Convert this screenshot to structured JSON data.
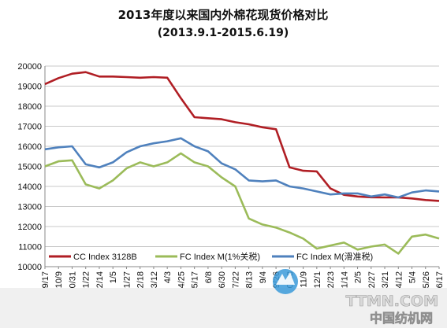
{
  "chart_data": {
    "type": "line",
    "title": "2013年度以来国内外棉花现货价格对比",
    "subtitle": "(2013.9.1-2015.6.19)",
    "xlabel": "",
    "ylabel": "",
    "ylim": [
      10000,
      20000
    ],
    "yticks": [
      10000,
      11000,
      12000,
      13000,
      14000,
      15000,
      16000,
      17000,
      18000,
      19000,
      20000
    ],
    "grid": "horizontal",
    "legend_position": "bottom",
    "x": [
      "9/17",
      "10/9",
      "10/31",
      "11/22",
      "12/14",
      "1/5",
      "1/27",
      "2/18",
      "3/12",
      "4/3",
      "4/25",
      "5/17",
      "6/8",
      "6/30",
      "7/22",
      "8/13",
      "9/4",
      "9/26",
      "10/18",
      "11/9",
      "12/1",
      "12/23",
      "1/14",
      "2/5",
      "2/27",
      "3/21",
      "4/12",
      "5/4",
      "5/26",
      "6/17"
    ],
    "series": [
      {
        "name": "CC Index 3128B",
        "color": "#b01e24",
        "values": [
          19100,
          19400,
          19620,
          19700,
          19480,
          19480,
          19450,
          19420,
          19450,
          19420,
          18400,
          17450,
          17400,
          17350,
          17200,
          17100,
          16950,
          16850,
          14950,
          14780,
          14750,
          13900,
          13580,
          13500,
          13460,
          13450,
          13450,
          13400,
          13320,
          13280
        ]
      },
      {
        "name": "FC Index M(1%关税)",
        "color": "#9bbb59",
        "values": [
          15000,
          15250,
          15300,
          14100,
          13900,
          14300,
          14900,
          15200,
          15000,
          15200,
          15650,
          15200,
          15000,
          14450,
          14000,
          12400,
          12100,
          11950,
          11700,
          11400,
          10900,
          11050,
          11200,
          10850,
          11000,
          11100,
          10650,
          11500,
          11600,
          11400
        ]
      },
      {
        "name": "FC Index M(滑准税)",
        "color": "#4f81bd",
        "values": [
          15850,
          15950,
          16000,
          15100,
          14950,
          15200,
          15700,
          16000,
          16150,
          16250,
          16400,
          16000,
          15750,
          15150,
          14850,
          14300,
          14250,
          14300,
          14000,
          13900,
          13750,
          13600,
          13650,
          13650,
          13500,
          13600,
          13450,
          13700,
          13800,
          13750
        ]
      }
    ]
  },
  "watermark": {
    "brand": "TTMN.COM",
    "slogan": "中国纺机网"
  }
}
